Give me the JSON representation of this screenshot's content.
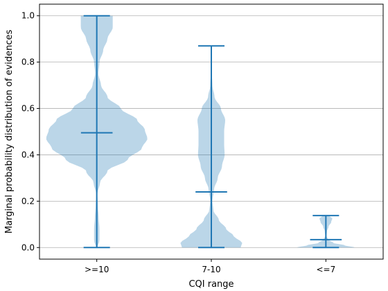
{
  "chart_data": {
    "type": "violin",
    "title": "",
    "xlabel": "CQI range",
    "ylabel": "Marginal probability distribution of evidences",
    "categories": [
      ">=10",
      "7-10",
      "<=7"
    ],
    "ylim": [
      -0.05,
      1.05
    ],
    "yticks": [
      0.0,
      0.2,
      0.4,
      0.6,
      0.8,
      1.0
    ],
    "ytick_labels": [
      "0.0",
      "0.2",
      "0.4",
      "0.6",
      "0.8",
      "1.0"
    ],
    "grid": "horizontal",
    "colors": {
      "body": "#1f77b4",
      "body_opacity": 0.3,
      "lines": "#1f77b4",
      "grid": "#b0b0b0"
    },
    "violins": [
      {
        "category": ">=10",
        "min": 0.0,
        "median": 0.495,
        "max": 1.0,
        "profile_y": [
          0.0,
          0.03,
          0.08,
          0.13,
          0.18,
          0.23,
          0.28,
          0.33,
          0.38,
          0.43,
          0.47,
          0.51,
          0.55,
          0.6,
          0.65,
          0.7,
          0.75,
          0.8,
          0.85,
          0.9,
          0.95,
          1.0
        ],
        "profile_w": [
          0.01,
          0.05,
          0.05,
          0.035,
          0.02,
          0.01,
          0.06,
          0.2,
          0.58,
          0.85,
          0.95,
          0.9,
          0.76,
          0.45,
          0.2,
          0.08,
          0.03,
          0.05,
          0.12,
          0.2,
          0.3,
          0.3
        ]
      },
      {
        "category": "7-10",
        "min": 0.0,
        "median": 0.24,
        "max": 0.87,
        "profile_y": [
          0.0,
          0.02,
          0.05,
          0.08,
          0.12,
          0.16,
          0.2,
          0.25,
          0.3,
          0.35,
          0.4,
          0.45,
          0.5,
          0.55,
          0.6,
          0.65,
          0.7,
          0.75,
          0.8,
          0.87
        ],
        "profile_w": [
          0.55,
          0.58,
          0.42,
          0.28,
          0.14,
          0.04,
          0.02,
          0.05,
          0.12,
          0.2,
          0.25,
          0.24,
          0.24,
          0.26,
          0.18,
          0.06,
          0.02,
          0.01,
          0.005,
          0.005
        ]
      },
      {
        "category": "<=7",
        "min": 0.0,
        "median": 0.034,
        "max": 0.138,
        "profile_y": [
          0.0,
          0.01,
          0.02,
          0.035,
          0.05,
          0.07,
          0.09,
          0.11,
          0.125,
          0.138
        ],
        "profile_w": [
          0.54,
          0.35,
          0.14,
          0.04,
          0.01,
          0.02,
          0.05,
          0.1,
          0.12,
          0.06
        ]
      }
    ]
  }
}
